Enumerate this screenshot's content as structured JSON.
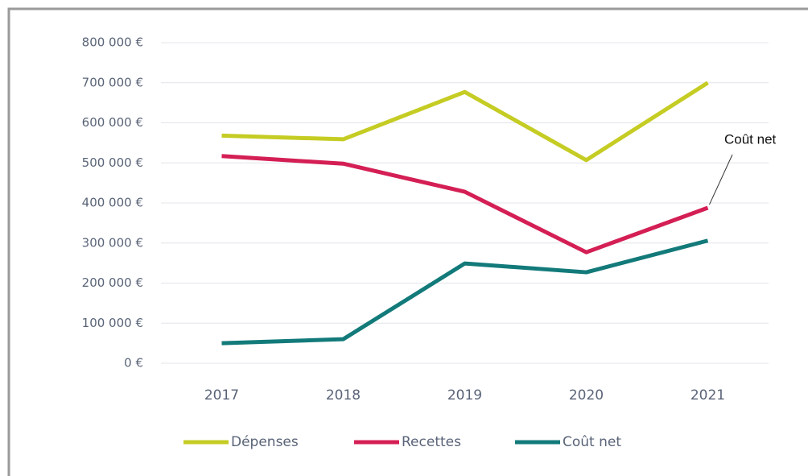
{
  "chart_data": {
    "type": "line",
    "categories": [
      "2017",
      "2018",
      "2019",
      "2020",
      "2021"
    ],
    "series": [
      {
        "name": "Dépenses",
        "color": "#c5cc23",
        "values": [
          568000,
          559000,
          677000,
          507000,
          700000
        ]
      },
      {
        "name": "Recettes",
        "color": "#d41f55",
        "values": [
          517000,
          498000,
          428000,
          277000,
          388000
        ]
      },
      {
        "name": "Coût net",
        "color": "#137a7a",
        "values": [
          50000,
          60000,
          249000,
          227000,
          306000
        ]
      }
    ],
    "ylim": [
      0,
      800000
    ],
    "yticks": [
      {
        "value": 0,
        "label": "0 €"
      },
      {
        "value": 100000,
        "label": "100 000 €"
      },
      {
        "value": 200000,
        "label": "200 000 €"
      },
      {
        "value": 300000,
        "label": "300 000 €"
      },
      {
        "value": 400000,
        "label": "400 000 €"
      },
      {
        "value": 500000,
        "label": "500 000 €"
      },
      {
        "value": 600000,
        "label": "600 000 €"
      },
      {
        "value": 700000,
        "label": "700 000 €"
      },
      {
        "value": 800000,
        "label": "800 000 €"
      }
    ],
    "grid": true,
    "legend": "bottom",
    "annotations": [
      {
        "text": "Coût net"
      }
    ]
  }
}
